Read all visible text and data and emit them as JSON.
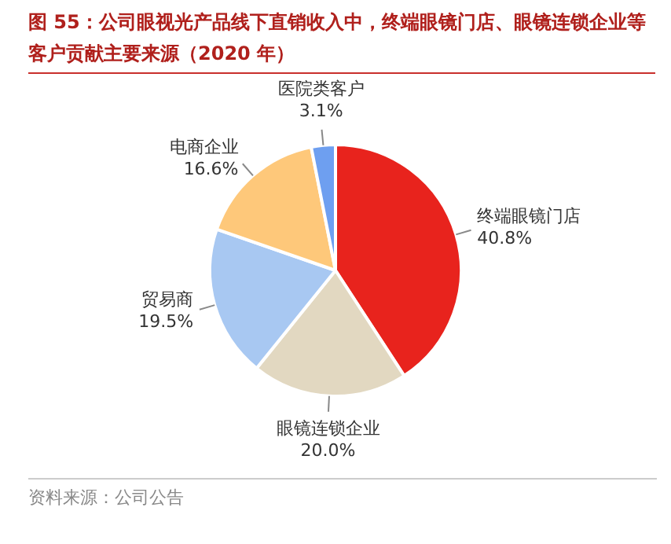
{
  "chart_data": {
    "type": "pie",
    "title": "图 55：公司眼视光产品线下直销收入中，终端眼镜门店、眼镜连锁企业等客户贡献主要来源（2020 年）",
    "categories": [
      "终端眼镜门店",
      "眼镜连锁企业",
      "贸易商",
      "电商企业",
      "医院类客户"
    ],
    "values": [
      40.8,
      20.0,
      19.5,
      16.6,
      3.1
    ],
    "value_labels": [
      "40.8%",
      "20.0%",
      "19.5%",
      "16.6%",
      "3.1%"
    ],
    "colors": [
      "#e8231d",
      "#e2d8c1",
      "#a8c8f2",
      "#fec87a",
      "#6e9ff0"
    ],
    "annotations": [
      "资料来源：公司公告"
    ]
  }
}
